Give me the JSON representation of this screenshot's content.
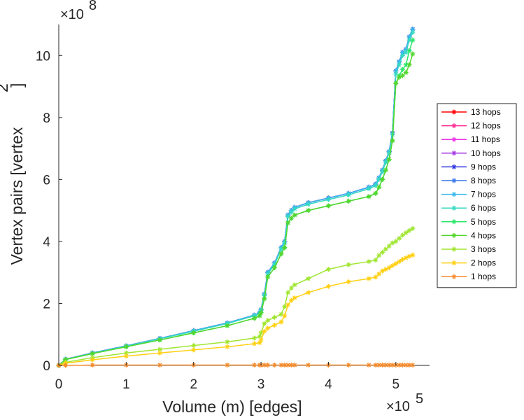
{
  "chart_data": {
    "type": "line",
    "title": "",
    "xlabel": "Volume (m) [edges]",
    "ylabel": "Vertex pairs [vertex",
    "ylabel_sup": "2",
    "ylabel_close": "]",
    "x_multiplier": "×10",
    "x_multiplier_exp": "5",
    "y_multiplier": "×10",
    "y_multiplier_exp": "8",
    "xlim": [
      0,
      5.5
    ],
    "ylim": [
      0,
      11
    ],
    "xticks": [
      0,
      1,
      2,
      3,
      4,
      5
    ],
    "xtick_labels": [
      "0",
      "1",
      "2",
      "3",
      "4",
      "5"
    ],
    "yticks": [
      0,
      2,
      4,
      6,
      8,
      10
    ],
    "ytick_labels": [
      "0",
      "2",
      "4",
      "6",
      "8",
      "10"
    ],
    "legend_position": "right",
    "x": [
      0,
      0.1,
      0.5,
      1.0,
      1.5,
      2.0,
      2.5,
      2.9,
      2.98,
      3.0,
      3.05,
      3.1,
      3.2,
      3.3,
      3.35,
      3.4,
      3.45,
      3.5,
      3.7,
      4.0,
      4.3,
      4.6,
      4.7,
      4.75,
      4.8,
      4.85,
      4.9,
      4.95,
      5.0,
      5.05,
      5.1,
      5.15,
      5.2,
      5.25
    ],
    "series": [
      {
        "name": "13 hops",
        "color": "#ff0000",
        "values": [
          0.0,
          0.2,
          0.4,
          0.63,
          0.87,
          1.12,
          1.37,
          1.62,
          1.7,
          1.8,
          2.3,
          3.0,
          3.3,
          3.8,
          4.0,
          4.85,
          5.0,
          5.1,
          5.25,
          5.4,
          5.55,
          5.75,
          5.85,
          6.05,
          6.3,
          6.6,
          6.9,
          7.5,
          9.5,
          9.8,
          10.1,
          10.2,
          10.6,
          10.85
        ]
      },
      {
        "name": "12 hops",
        "color": "#ff2e93",
        "values": [
          0.0,
          0.2,
          0.4,
          0.63,
          0.87,
          1.12,
          1.37,
          1.62,
          1.7,
          1.8,
          2.3,
          3.0,
          3.3,
          3.8,
          4.0,
          4.85,
          5.0,
          5.1,
          5.25,
          5.4,
          5.55,
          5.75,
          5.85,
          6.05,
          6.3,
          6.6,
          6.9,
          7.5,
          9.5,
          9.8,
          10.1,
          10.2,
          10.6,
          10.85
        ]
      },
      {
        "name": "11 hops",
        "color": "#ea34e6",
        "values": [
          0.0,
          0.2,
          0.4,
          0.63,
          0.87,
          1.12,
          1.37,
          1.62,
          1.7,
          1.8,
          2.3,
          3.0,
          3.3,
          3.8,
          4.0,
          4.85,
          5.0,
          5.1,
          5.25,
          5.4,
          5.55,
          5.75,
          5.85,
          6.05,
          6.3,
          6.6,
          6.9,
          7.5,
          9.5,
          9.8,
          10.1,
          10.2,
          10.6,
          10.85
        ]
      },
      {
        "name": "10 hops",
        "color": "#a335e6",
        "values": [
          0.0,
          0.2,
          0.4,
          0.63,
          0.87,
          1.12,
          1.37,
          1.62,
          1.7,
          1.8,
          2.3,
          3.0,
          3.3,
          3.8,
          4.0,
          4.85,
          5.0,
          5.1,
          5.25,
          5.4,
          5.55,
          5.75,
          5.85,
          6.05,
          6.3,
          6.6,
          6.9,
          7.5,
          9.5,
          9.8,
          10.1,
          10.2,
          10.6,
          10.85
        ]
      },
      {
        "name": "9 hops",
        "color": "#2f37de",
        "values": [
          0.0,
          0.2,
          0.4,
          0.63,
          0.87,
          1.12,
          1.37,
          1.62,
          1.7,
          1.8,
          2.3,
          3.0,
          3.3,
          3.8,
          4.0,
          4.85,
          5.0,
          5.1,
          5.25,
          5.4,
          5.55,
          5.75,
          5.85,
          6.05,
          6.3,
          6.6,
          6.9,
          7.5,
          9.5,
          9.8,
          10.1,
          10.2,
          10.6,
          10.85
        ]
      },
      {
        "name": "8 hops",
        "color": "#3a78ea",
        "values": [
          0.0,
          0.2,
          0.4,
          0.63,
          0.87,
          1.12,
          1.37,
          1.62,
          1.7,
          1.8,
          2.3,
          3.0,
          3.3,
          3.8,
          4.0,
          4.85,
          5.0,
          5.1,
          5.25,
          5.4,
          5.55,
          5.75,
          5.85,
          6.05,
          6.3,
          6.6,
          6.9,
          7.5,
          9.5,
          9.8,
          10.1,
          10.2,
          10.6,
          10.85
        ]
      },
      {
        "name": "7 hops",
        "color": "#38b8ee",
        "values": [
          0.0,
          0.2,
          0.4,
          0.63,
          0.87,
          1.12,
          1.37,
          1.62,
          1.7,
          1.8,
          2.3,
          3.0,
          3.3,
          3.8,
          4.0,
          4.85,
          5.0,
          5.1,
          5.25,
          5.4,
          5.55,
          5.75,
          5.85,
          6.05,
          6.3,
          6.6,
          6.9,
          7.5,
          9.5,
          9.8,
          10.1,
          10.2,
          10.6,
          10.85
        ]
      },
      {
        "name": "6 hops",
        "color": "#35d9c2",
        "values": [
          0.0,
          0.2,
          0.39,
          0.62,
          0.86,
          1.1,
          1.35,
          1.6,
          1.68,
          1.78,
          2.25,
          2.95,
          3.25,
          3.75,
          3.95,
          4.8,
          4.95,
          5.05,
          5.2,
          5.35,
          5.5,
          5.7,
          5.8,
          6.0,
          6.25,
          6.55,
          6.85,
          7.45,
          9.4,
          9.7,
          10.0,
          10.1,
          10.5,
          10.75
        ]
      },
      {
        "name": "5 hops",
        "color": "#2ae66a",
        "values": [
          0.0,
          0.19,
          0.38,
          0.6,
          0.82,
          1.05,
          1.28,
          1.52,
          1.6,
          1.7,
          2.15,
          2.85,
          3.15,
          3.6,
          3.8,
          4.6,
          4.75,
          4.85,
          5.0,
          5.15,
          5.3,
          5.45,
          5.55,
          5.75,
          6.0,
          6.3,
          6.65,
          7.25,
          9.1,
          9.35,
          9.55,
          9.7,
          10.15,
          10.5
        ]
      },
      {
        "name": "4 hops",
        "color": "#52d62c",
        "values": [
          0.0,
          0.19,
          0.38,
          0.6,
          0.82,
          1.05,
          1.28,
          1.52,
          1.6,
          1.7,
          2.15,
          2.85,
          3.15,
          3.6,
          3.8,
          4.6,
          4.75,
          4.85,
          5.0,
          5.15,
          5.3,
          5.45,
          5.55,
          5.75,
          6.0,
          6.3,
          6.65,
          7.25,
          9.1,
          9.3,
          9.35,
          9.45,
          9.7,
          10.05
        ]
      },
      {
        "name": "3 hops",
        "color": "#a0e631",
        "values": [
          0.0,
          0.1,
          0.25,
          0.4,
          0.52,
          0.64,
          0.76,
          0.88,
          0.93,
          1.05,
          1.35,
          1.45,
          1.55,
          1.65,
          1.9,
          2.35,
          2.5,
          2.6,
          2.8,
          3.1,
          3.25,
          3.35,
          3.4,
          3.55,
          3.65,
          3.75,
          3.85,
          3.95,
          4.0,
          4.1,
          4.2,
          4.28,
          4.35,
          4.42
        ]
      },
      {
        "name": "2 hops",
        "color": "#ffd012",
        "values": [
          0.0,
          0.07,
          0.18,
          0.3,
          0.4,
          0.5,
          0.6,
          0.7,
          0.73,
          0.82,
          1.1,
          1.2,
          1.3,
          1.4,
          1.6,
          1.95,
          2.1,
          2.18,
          2.35,
          2.55,
          2.7,
          2.8,
          2.85,
          2.95,
          3.05,
          3.1,
          3.15,
          3.22,
          3.28,
          3.35,
          3.42,
          3.47,
          3.52,
          3.56
        ]
      },
      {
        "name": "1 hops",
        "color": "#f58a2b",
        "values": [
          0.0,
          0.0,
          0.01,
          0.01,
          0.01,
          0.01,
          0.01,
          0.01,
          0.01,
          0.01,
          0.01,
          0.01,
          0.01,
          0.01,
          0.01,
          0.01,
          0.01,
          0.01,
          0.01,
          0.01,
          0.01,
          0.01,
          0.01,
          0.01,
          0.01,
          0.01,
          0.01,
          0.01,
          0.01,
          0.01,
          0.01,
          0.01,
          0.01,
          0.01
        ]
      }
    ]
  }
}
